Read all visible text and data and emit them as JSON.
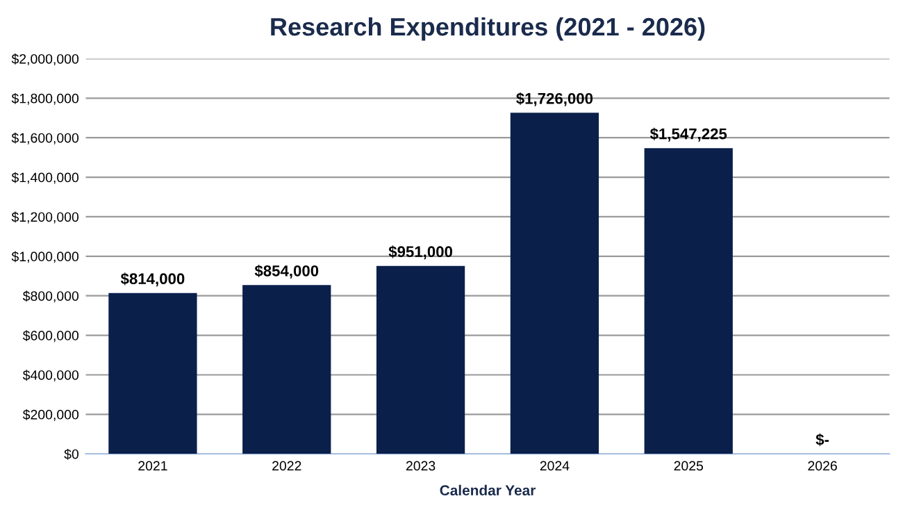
{
  "chart_data": {
    "type": "bar",
    "title": "Research Expenditures (2021 - 2026)",
    "xlabel": "Calendar Year",
    "categories": [
      "2021",
      "2022",
      "2023",
      "2024",
      "2025",
      "2026"
    ],
    "values": [
      814000,
      854000,
      951000,
      1726000,
      1547225,
      0
    ],
    "value_labels": [
      "$814,000",
      "$854,000",
      "$951,000",
      "$1,726,000",
      "$1,547,225",
      "$-"
    ],
    "color": "#0b1f4b",
    "ylim": [
      0,
      2000000
    ],
    "yticks": [
      {
        "value": 0,
        "label": "$0"
      },
      {
        "value": 200000,
        "label": "$200,000"
      },
      {
        "value": 400000,
        "label": "$400,000"
      },
      {
        "value": 600000,
        "label": "$600,000"
      },
      {
        "value": 800000,
        "label": "$800,000"
      },
      {
        "value": 1000000,
        "label": "$1,000,000"
      },
      {
        "value": 1200000,
        "label": "$1,200,000"
      },
      {
        "value": 1400000,
        "label": "$1,400,000"
      },
      {
        "value": 1600000,
        "label": "$1,600,000"
      },
      {
        "value": 1800000,
        "label": "$1,800,000"
      },
      {
        "value": 2000000,
        "label": "$2,000,000"
      }
    ],
    "grid": "y",
    "legend": false
  }
}
